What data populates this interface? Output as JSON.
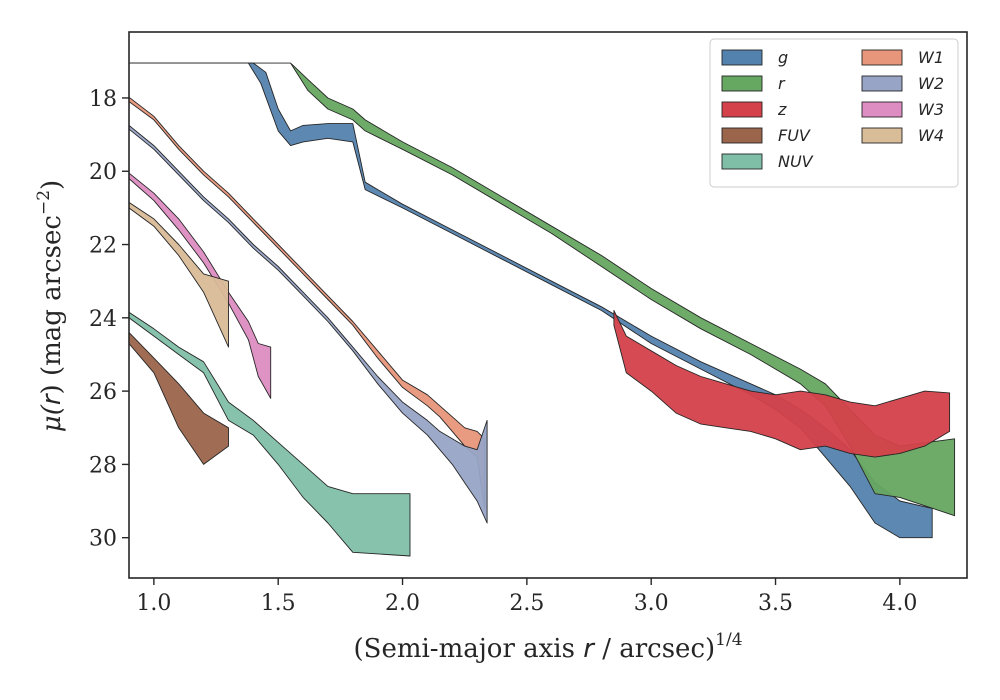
{
  "chart_data": {
    "type": "area",
    "xlabel": "(Semi-major axis r / arcsec)^1/4",
    "xlabel_parts": {
      "prefix": "(Semi-major axis ",
      "var": "r",
      "mid": " / arcsec)",
      "sup": "1/4"
    },
    "ylabel": "μ(r) (mag arcsec^−2)",
    "ylabel_parts": {
      "mu": "μ(",
      "var": "r",
      "rest": ") (mag arcsec",
      "sup": "−2",
      "close": ")"
    },
    "xlim": [
      0.9,
      4.27
    ],
    "ylim": [
      31.1,
      16.2
    ],
    "y_inverted": true,
    "x_ticks": [
      "1.0",
      "1.5",
      "2.0",
      "2.5",
      "3.0",
      "3.5",
      "4.0"
    ],
    "y_ticks": [
      "18",
      "20",
      "22",
      "24",
      "26",
      "28",
      "30"
    ],
    "grid": false,
    "legend_position": "top-right",
    "legend_columns": 2,
    "series": [
      {
        "name": "W1",
        "color": "#e8967b",
        "upper": [
          [
            0.9,
            17.98
          ],
          [
            1.0,
            18.5
          ],
          [
            1.1,
            19.3
          ],
          [
            1.2,
            20.0
          ],
          [
            1.3,
            20.6
          ],
          [
            1.4,
            21.3
          ],
          [
            1.5,
            22.0
          ],
          [
            1.6,
            22.7
          ],
          [
            1.7,
            23.4
          ],
          [
            1.8,
            24.1
          ],
          [
            1.9,
            24.9
          ],
          [
            2.0,
            25.7
          ],
          [
            2.1,
            26.1
          ],
          [
            2.15,
            26.4
          ],
          [
            2.2,
            26.7
          ],
          [
            2.25,
            27.0
          ],
          [
            2.3,
            27.1
          ],
          [
            2.33,
            27.3
          ]
        ],
        "lower": [
          [
            0.9,
            18.1
          ],
          [
            1.0,
            18.6
          ],
          [
            1.1,
            19.4
          ],
          [
            1.2,
            20.1
          ],
          [
            1.3,
            20.7
          ],
          [
            1.4,
            21.4
          ],
          [
            1.5,
            22.1
          ],
          [
            1.6,
            22.8
          ],
          [
            1.7,
            23.5
          ],
          [
            1.8,
            24.2
          ],
          [
            1.9,
            25.1
          ],
          [
            2.0,
            25.9
          ],
          [
            2.1,
            26.4
          ],
          [
            2.15,
            26.7
          ],
          [
            2.2,
            27.1
          ],
          [
            2.25,
            27.5
          ],
          [
            2.3,
            27.8
          ],
          [
            2.33,
            29.2
          ]
        ]
      },
      {
        "name": "W2",
        "color": "#97a4c6",
        "upper": [
          [
            0.9,
            18.75
          ],
          [
            1.0,
            19.3
          ],
          [
            1.1,
            20.0
          ],
          [
            1.2,
            20.7
          ],
          [
            1.3,
            21.3
          ],
          [
            1.4,
            22.0
          ],
          [
            1.5,
            22.6
          ],
          [
            1.6,
            23.3
          ],
          [
            1.7,
            24.0
          ],
          [
            1.8,
            24.8
          ],
          [
            1.9,
            25.6
          ],
          [
            2.0,
            26.3
          ],
          [
            2.1,
            26.8
          ],
          [
            2.15,
            27.1
          ],
          [
            2.2,
            27.3
          ],
          [
            2.25,
            27.5
          ],
          [
            2.3,
            27.6
          ],
          [
            2.34,
            26.8
          ]
        ],
        "lower": [
          [
            0.9,
            18.85
          ],
          [
            1.0,
            19.4
          ],
          [
            1.1,
            20.1
          ],
          [
            1.2,
            20.8
          ],
          [
            1.3,
            21.4
          ],
          [
            1.4,
            22.1
          ],
          [
            1.5,
            22.7
          ],
          [
            1.6,
            23.4
          ],
          [
            1.7,
            24.1
          ],
          [
            1.8,
            24.9
          ],
          [
            1.9,
            25.8
          ],
          [
            2.0,
            26.6
          ],
          [
            2.1,
            27.2
          ],
          [
            2.15,
            27.6
          ],
          [
            2.2,
            28.0
          ],
          [
            2.25,
            28.5
          ],
          [
            2.3,
            29.0
          ],
          [
            2.34,
            29.6
          ]
        ]
      },
      {
        "name": "W3",
        "color": "#dd8dc2",
        "upper": [
          [
            0.9,
            20.05
          ],
          [
            1.0,
            20.6
          ],
          [
            1.1,
            21.3
          ],
          [
            1.2,
            22.2
          ],
          [
            1.3,
            23.3
          ],
          [
            1.38,
            24.1
          ],
          [
            1.42,
            24.7
          ],
          [
            1.47,
            24.8
          ]
        ],
        "lower": [
          [
            0.9,
            20.2
          ],
          [
            1.0,
            20.8
          ],
          [
            1.1,
            21.6
          ],
          [
            1.2,
            22.5
          ],
          [
            1.3,
            23.6
          ],
          [
            1.38,
            24.6
          ],
          [
            1.42,
            25.6
          ],
          [
            1.47,
            26.2
          ]
        ]
      },
      {
        "name": "W4",
        "color": "#d9bc98",
        "upper": [
          [
            0.9,
            20.85
          ],
          [
            1.0,
            21.3
          ],
          [
            1.1,
            22.0
          ],
          [
            1.2,
            22.8
          ],
          [
            1.3,
            23.0
          ]
        ],
        "lower": [
          [
            0.9,
            21.0
          ],
          [
            1.0,
            21.5
          ],
          [
            1.1,
            22.3
          ],
          [
            1.2,
            23.3
          ],
          [
            1.3,
            24.8
          ]
        ]
      },
      {
        "name": "NUV",
        "color": "#7fbfa8",
        "upper": [
          [
            0.9,
            23.85
          ],
          [
            1.0,
            24.3
          ],
          [
            1.1,
            24.8
          ],
          [
            1.2,
            25.2
          ],
          [
            1.3,
            26.3
          ],
          [
            1.4,
            26.8
          ],
          [
            1.5,
            27.4
          ],
          [
            1.6,
            28.0
          ],
          [
            1.7,
            28.6
          ],
          [
            1.8,
            28.8
          ],
          [
            2.03,
            28.8
          ]
        ],
        "lower": [
          [
            0.9,
            24.0
          ],
          [
            1.0,
            24.5
          ],
          [
            1.1,
            25.0
          ],
          [
            1.2,
            25.5
          ],
          [
            1.3,
            26.8
          ],
          [
            1.4,
            27.2
          ],
          [
            1.5,
            28.0
          ],
          [
            1.6,
            28.9
          ],
          [
            1.7,
            29.6
          ],
          [
            1.8,
            30.4
          ],
          [
            2.03,
            30.5
          ]
        ]
      },
      {
        "name": "FUV",
        "color": "#9b654b",
        "upper": [
          [
            0.9,
            24.4
          ],
          [
            1.0,
            25.1
          ],
          [
            1.1,
            25.8
          ],
          [
            1.2,
            26.6
          ],
          [
            1.3,
            27.0
          ]
        ],
        "lower": [
          [
            0.9,
            24.7
          ],
          [
            1.0,
            25.5
          ],
          [
            1.1,
            27.0
          ],
          [
            1.2,
            28.0
          ],
          [
            1.3,
            27.5
          ]
        ]
      },
      {
        "name": "g",
        "color": "#5482ae",
        "upper": [
          [
            0.9,
            17.05
          ],
          [
            1.4,
            17.05
          ],
          [
            1.45,
            17.3
          ],
          [
            1.5,
            18.3
          ],
          [
            1.55,
            18.9
          ],
          [
            1.6,
            18.75
          ],
          [
            1.7,
            18.7
          ],
          [
            1.8,
            18.7
          ],
          [
            1.85,
            20.3
          ],
          [
            2.0,
            20.9
          ],
          [
            2.2,
            21.6
          ],
          [
            2.4,
            22.3
          ],
          [
            2.6,
            23.0
          ],
          [
            2.8,
            23.7
          ],
          [
            3.0,
            24.5
          ],
          [
            3.2,
            25.2
          ],
          [
            3.4,
            25.8
          ],
          [
            3.5,
            26.1
          ],
          [
            3.6,
            26.5
          ],
          [
            3.7,
            27.0
          ],
          [
            3.8,
            27.6
          ],
          [
            3.9,
            28.5
          ],
          [
            4.0,
            29.0
          ],
          [
            4.13,
            29.2
          ]
        ],
        "lower": [
          [
            0.9,
            17.05
          ],
          [
            1.38,
            17.05
          ],
          [
            1.43,
            17.6
          ],
          [
            1.5,
            18.9
          ],
          [
            1.55,
            19.3
          ],
          [
            1.6,
            19.2
          ],
          [
            1.7,
            19.1
          ],
          [
            1.8,
            19.2
          ],
          [
            1.85,
            20.5
          ],
          [
            2.0,
            21.0
          ],
          [
            2.2,
            21.7
          ],
          [
            2.4,
            22.4
          ],
          [
            2.6,
            23.1
          ],
          [
            2.8,
            23.8
          ],
          [
            3.0,
            24.7
          ],
          [
            3.2,
            25.4
          ],
          [
            3.4,
            26.1
          ],
          [
            3.5,
            26.5
          ],
          [
            3.6,
            27.0
          ],
          [
            3.7,
            27.8
          ],
          [
            3.8,
            28.6
          ],
          [
            3.9,
            29.6
          ],
          [
            4.0,
            30.0
          ],
          [
            4.13,
            30.0
          ]
        ]
      },
      {
        "name": "r",
        "color": "#66a761",
        "upper": [
          [
            0.9,
            17.05
          ],
          [
            1.55,
            17.05
          ],
          [
            1.62,
            17.5
          ],
          [
            1.7,
            18.0
          ],
          [
            1.8,
            18.3
          ],
          [
            1.85,
            18.6
          ],
          [
            2.0,
            19.2
          ],
          [
            2.2,
            19.9
          ],
          [
            2.4,
            20.7
          ],
          [
            2.6,
            21.5
          ],
          [
            2.8,
            22.3
          ],
          [
            3.0,
            23.2
          ],
          [
            3.2,
            24.0
          ],
          [
            3.4,
            24.7
          ],
          [
            3.6,
            25.4
          ],
          [
            3.7,
            25.8
          ],
          [
            3.8,
            26.5
          ],
          [
            3.9,
            27.2
          ],
          [
            4.0,
            27.5
          ],
          [
            4.22,
            27.3
          ]
        ],
        "lower": [
          [
            0.9,
            17.05
          ],
          [
            1.55,
            17.05
          ],
          [
            1.62,
            17.8
          ],
          [
            1.7,
            18.3
          ],
          [
            1.8,
            18.6
          ],
          [
            1.85,
            18.9
          ],
          [
            2.0,
            19.4
          ],
          [
            2.2,
            20.1
          ],
          [
            2.4,
            20.9
          ],
          [
            2.6,
            21.7
          ],
          [
            2.8,
            22.6
          ],
          [
            3.0,
            23.5
          ],
          [
            3.2,
            24.3
          ],
          [
            3.4,
            25.0
          ],
          [
            3.6,
            25.8
          ],
          [
            3.7,
            26.4
          ],
          [
            3.8,
            27.5
          ],
          [
            3.9,
            28.8
          ],
          [
            4.0,
            28.9
          ],
          [
            4.22,
            29.4
          ]
        ]
      },
      {
        "name": "z",
        "color": "#d4414a",
        "upper": [
          [
            2.85,
            23.8
          ],
          [
            2.9,
            24.5
          ],
          [
            3.0,
            24.9
          ],
          [
            3.1,
            25.3
          ],
          [
            3.2,
            25.6
          ],
          [
            3.3,
            25.8
          ],
          [
            3.4,
            26.0
          ],
          [
            3.5,
            26.1
          ],
          [
            3.6,
            26.0
          ],
          [
            3.7,
            26.1
          ],
          [
            3.8,
            26.3
          ],
          [
            3.9,
            26.4
          ],
          [
            4.0,
            26.2
          ],
          [
            4.1,
            26.0
          ],
          [
            4.2,
            26.05
          ]
        ],
        "lower": [
          [
            2.85,
            24.2
          ],
          [
            2.9,
            25.5
          ],
          [
            3.0,
            26.0
          ],
          [
            3.1,
            26.6
          ],
          [
            3.2,
            26.9
          ],
          [
            3.3,
            27.0
          ],
          [
            3.4,
            27.1
          ],
          [
            3.5,
            27.3
          ],
          [
            3.6,
            27.6
          ],
          [
            3.7,
            27.5
          ],
          [
            3.8,
            27.7
          ],
          [
            3.9,
            27.8
          ],
          [
            4.0,
            27.7
          ],
          [
            4.1,
            27.5
          ],
          [
            4.2,
            27.1
          ]
        ]
      }
    ]
  }
}
